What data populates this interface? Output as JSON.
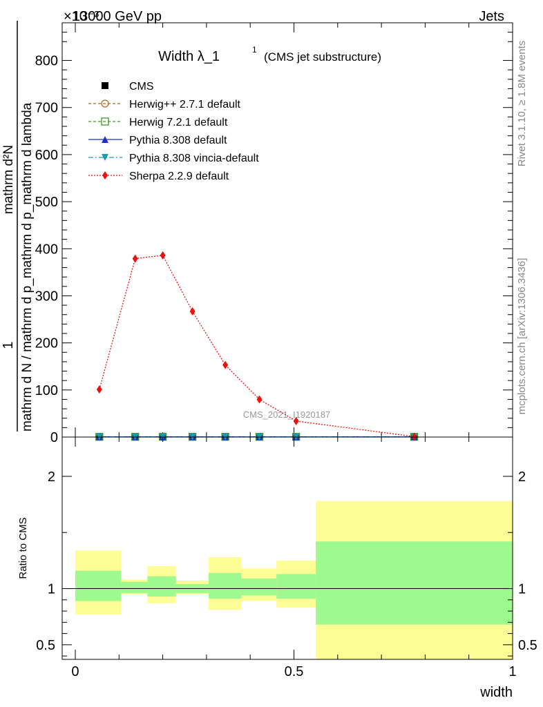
{
  "header": {
    "energy_label": "13000 GeV pp",
    "category_label": "Jets",
    "exponent_label": "×10⁻³"
  },
  "side_labels": {
    "rivet": "Rivet 3.1.10, ≥ 1.8M events",
    "mcplots": "mcplots.cern.ch [arXiv:1306.3436]"
  },
  "watermark": "CMS_2021_I1920187",
  "chart_data": [
    {
      "type": "line",
      "title": "Width λ_1",
      "title_superscript": "1",
      "subtitle": "(CMS jet substructure)",
      "ylabel_numerator": "1",
      "ylabel_denominator": "mathrm d N / mathrm d p_mathrm d p_mathrm d lambda",
      "ylabel_top": "mathrm d²N",
      "ylim": [
        0,
        880
      ],
      "y_ticks": [
        0,
        100,
        200,
        300,
        400,
        500,
        600,
        700,
        800
      ],
      "y_tick_labels": [
        "0",
        "100",
        "200",
        "300",
        "400",
        "500",
        "600",
        "700",
        "800"
      ],
      "xlim": [
        -0.03,
        1.0
      ],
      "x_ticks": [
        0,
        0.5,
        1
      ],
      "x": [
        0.055,
        0.137,
        0.2,
        0.268,
        0.343,
        0.421,
        0.505,
        0.775
      ],
      "series": [
        {
          "name": "CMS",
          "marker": "square-filled",
          "color": "#000000",
          "line": "none",
          "values": [
            0.5,
            0.5,
            0.5,
            0.5,
            0.5,
            0.5,
            0.5,
            0.5
          ]
        },
        {
          "name": "Herwig++ 2.7.1 default",
          "marker": "circle-open",
          "color": "#b5651d",
          "line": "dashed",
          "values": [
            0.5,
            0.5,
            0.5,
            0.5,
            0.5,
            0.5,
            0.5,
            0.5
          ]
        },
        {
          "name": "Herwig 7.2.1 default",
          "marker": "square-open",
          "color": "#3c9a1e",
          "line": "dashed",
          "values": [
            0.5,
            0.5,
            0.5,
            0.5,
            0.5,
            0.5,
            0.5,
            0.5
          ]
        },
        {
          "name": "Pythia 8.308 default",
          "marker": "triangle-up",
          "color": "#1f2fc8",
          "line": "solid",
          "values": [
            0.5,
            0.5,
            0.5,
            0.5,
            0.5,
            0.5,
            0.5,
            0.5
          ]
        },
        {
          "name": "Pythia 8.308 vincia-default",
          "marker": "triangle-down",
          "color": "#1a9bb0",
          "line": "dashdot",
          "values": [
            0.5,
            0.5,
            0.5,
            0.5,
            0.5,
            0.5,
            0.5,
            0.5
          ]
        },
        {
          "name": "Sherpa 2.2.9 default",
          "marker": "diamond",
          "color": "#ee1111",
          "line": "dotted",
          "values": [
            101,
            379,
            386,
            267,
            153,
            80,
            34,
            1
          ]
        }
      ]
    },
    {
      "type": "area",
      "ylabel": "Ratio to CMS",
      "xlabel": "width",
      "ylim": [
        0.37,
        2.35
      ],
      "y_ticks": [
        0.5,
        1,
        2
      ],
      "y_tick_labels": [
        "0.5",
        "1",
        "2"
      ],
      "xlim": [
        -0.03,
        1.0
      ],
      "x_ticks": [
        0,
        0.5,
        1
      ],
      "x_tick_labels": [
        "0",
        "0.5",
        "1"
      ],
      "reference_line": 1,
      "bins": [
        {
          "lo": 0.0,
          "hi": 0.105,
          "stat": [
            0.89,
            1.16
          ],
          "total": [
            0.77,
            1.34
          ]
        },
        {
          "lo": 0.105,
          "hi": 0.165,
          "stat": [
            0.96,
            1.06
          ],
          "total": [
            0.95,
            1.08
          ]
        },
        {
          "lo": 0.165,
          "hi": 0.23,
          "stat": [
            0.93,
            1.11
          ],
          "total": [
            0.87,
            1.2
          ]
        },
        {
          "lo": 0.23,
          "hi": 0.305,
          "stat": [
            0.96,
            1.04
          ],
          "total": [
            0.95,
            1.07
          ]
        },
        {
          "lo": 0.305,
          "hi": 0.38,
          "stat": [
            0.91,
            1.14
          ],
          "total": [
            0.81,
            1.28
          ]
        },
        {
          "lo": 0.38,
          "hi": 0.46,
          "stat": [
            0.94,
            1.09
          ],
          "total": [
            0.89,
            1.18
          ]
        },
        {
          "lo": 0.46,
          "hi": 0.55,
          "stat": [
            0.91,
            1.13
          ],
          "total": [
            0.83,
            1.25
          ]
        },
        {
          "lo": 0.55,
          "hi": 1.0,
          "stat": [
            0.68,
            1.42
          ],
          "total": [
            0.37,
            1.78
          ]
        }
      ],
      "colors": {
        "stat": "#9efa8f",
        "total": "#fdfd96"
      }
    }
  ]
}
